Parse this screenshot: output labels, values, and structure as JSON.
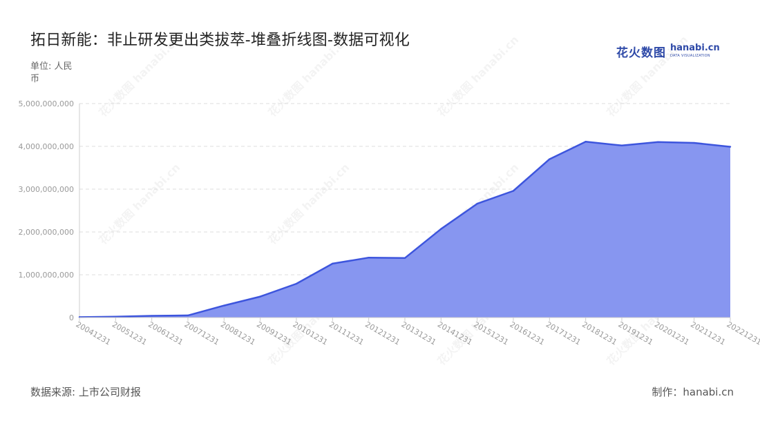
{
  "title": "拓日新能：非止研发更出类拔萃-堆叠折线图-数据可视化",
  "unit_label": "单位: 人民币",
  "logo": {
    "cn": "花火数图",
    "en": "hanabi.cn",
    "sub": "DATA VISUALIZATION"
  },
  "source": "数据来源: 上市公司财报",
  "credit": "制作：hanabi.cn",
  "colors": {
    "line": "#3d55dd",
    "area": "#8796f0",
    "grid": "#dddddd",
    "axis": "#cccccc"
  },
  "chart_data": {
    "type": "area",
    "title": "拓日新能：非止研发更出类拔萃-堆叠折线图-数据可视化",
    "ylabel": "单位: 人民币",
    "ylim": [
      0,
      5000000000
    ],
    "yticks": [
      0,
      1000000000,
      2000000000,
      3000000000,
      4000000000,
      5000000000
    ],
    "ytick_labels": [
      "0",
      "1,000,000,000",
      "2,000,000,000",
      "3,000,000,000",
      "4,000,000,000",
      "5,000,000,000"
    ],
    "grid": true,
    "categories": [
      "20041231",
      "20051231",
      "20061231",
      "20071231",
      "20081231",
      "20091231",
      "20101231",
      "20111231",
      "20121231",
      "20131231",
      "20141231",
      "20151231",
      "20161231",
      "20171231",
      "20181231",
      "20191231",
      "20201231",
      "20211231",
      "20221231"
    ],
    "series": [
      {
        "values": [
          10000000,
          20000000,
          40000000,
          50000000,
          280000000,
          490000000,
          790000000,
          1260000000,
          1400000000,
          1390000000,
          2070000000,
          2660000000,
          2960000000,
          3700000000,
          4110000000,
          4020000000,
          4100000000,
          4080000000,
          3990000000
        ]
      }
    ]
  }
}
